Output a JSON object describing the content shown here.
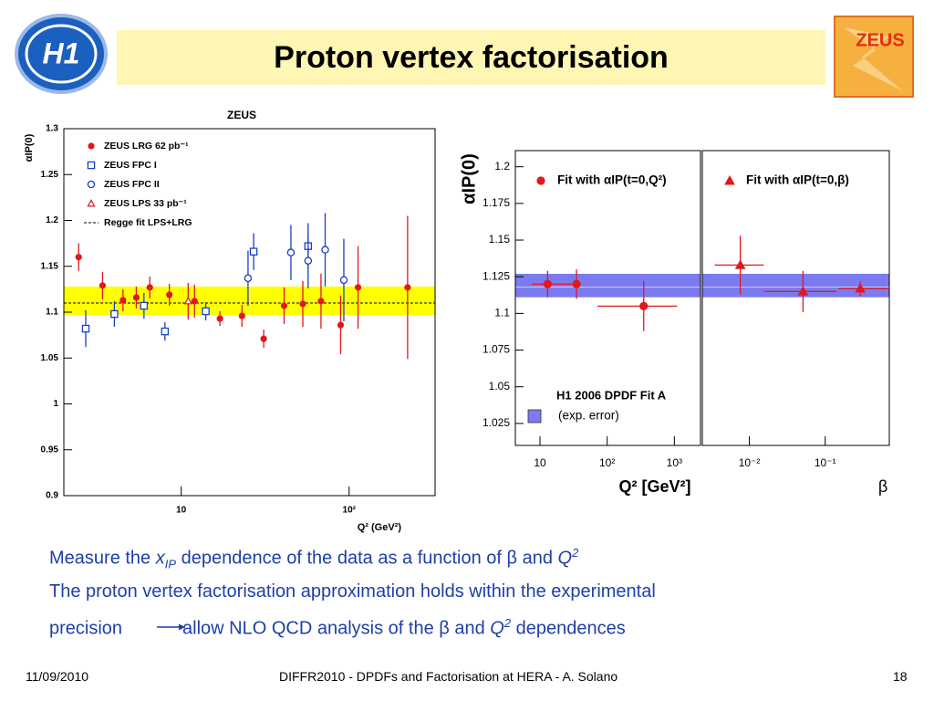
{
  "slide_title": "Proton vertex factorisation",
  "logos": {
    "left": "H1",
    "right": "ZEUS"
  },
  "chart_data": [
    {
      "type": "scatter",
      "title": "ZEUS",
      "y_label": "αIP(0)",
      "x_label": "Q² (GeV²)",
      "xscale": "log",
      "xlim": [
        2,
        325
      ],
      "xticks": [
        10,
        {
          "value": 100,
          "label": "10²"
        }
      ],
      "ylim": [
        0.9,
        1.3
      ],
      "yticks": [
        0.9,
        0.95,
        1,
        1.05,
        1.1,
        1.15,
        1.2,
        1.25,
        1.3
      ],
      "legend": "upper left",
      "fit": {
        "name": "Regge fit LPS+LRG",
        "value": 1.11,
        "band": [
          1.097,
          1.128
        ],
        "color": "#000000",
        "band_color": "#ffff00",
        "style": "dashed"
      },
      "series": [
        {
          "name": "ZEUS LRG 62 pb⁻¹",
          "color": "#e3161d",
          "marker": "circle-filled",
          "x": [
            2.45,
            3.4,
            4.5,
            5.4,
            6.5,
            8.5,
            12,
            17,
            23,
            31,
            41,
            53,
            68,
            89,
            113,
            223
          ],
          "values": [
            1.16,
            1.129,
            1.113,
            1.116,
            1.127,
            1.119,
            1.112,
            1.093,
            1.096,
            1.071,
            1.107,
            1.109,
            1.112,
            1.086,
            1.127,
            1.127
          ],
          "errors": [
            0.015,
            0.015,
            0.012,
            0.012,
            0.012,
            0.012,
            0.018,
            0.008,
            0.012,
            0.01,
            0.02,
            0.025,
            0.03,
            0.032,
            0.045,
            0.078
          ]
        },
        {
          "name": "ZEUS FPC I",
          "color": "#1a3fc8",
          "marker": "square-open",
          "x": [
            2.7,
            4.0,
            6.0,
            8.0,
            14,
            27,
            57
          ],
          "values": [
            1.082,
            1.098,
            1.107,
            1.079,
            1.101,
            1.166,
            1.172
          ],
          "errors": [
            0.02,
            0.014,
            0.014,
            0.01,
            0.01,
            0.02,
            0.025
          ]
        },
        {
          "name": "ZEUS FPC II",
          "color": "#1a3fc8",
          "marker": "circle-open",
          "x": [
            25,
            45,
            57,
            72,
            93
          ],
          "values": [
            1.137,
            1.165,
            1.156,
            1.168,
            1.135
          ],
          "errors": [
            0.03,
            0.03,
            0.03,
            0.04,
            0.045
          ]
        },
        {
          "name": "ZEUS LPS 33 pb⁻¹",
          "color": "#e3161d",
          "marker": "triangle-open",
          "x": [
            11
          ],
          "values": [
            1.112
          ],
          "errors": [
            0.02
          ]
        }
      ]
    },
    {
      "type": "scatter",
      "y_label": "αIP(0)",
      "x_label": "Q² [GeV²]",
      "xscale": "log",
      "xlim": [
        4.3,
        2450
      ],
      "xticks": [
        10,
        {
          "value": 100,
          "label": "10²"
        },
        {
          "value": 1000,
          "label": "10³"
        }
      ],
      "ylim": [
        1.01,
        1.211
      ],
      "yticks": [
        1.025,
        1.05,
        1.075,
        1.1,
        1.125,
        1.15,
        1.175,
        1.2
      ],
      "legend": "upper left",
      "fit": {
        "name": "H1 2006 DPDF Fit A",
        "note": "(exp. error)",
        "value": 1.118,
        "band": [
          1.111,
          1.127
        ],
        "color": "#c8c8ff",
        "band_color": "#7b7bef",
        "style": "solid"
      },
      "series": [
        {
          "name": "Fit with αIP(t=0,Q²)",
          "color": "#e3161d",
          "marker": "circle-filled",
          "x": [
            13,
            35,
            350
          ],
          "x_low": [
            7.6,
            22,
            72
          ],
          "x_high": [
            22,
            41,
            1100
          ],
          "values": [
            1.12,
            1.12,
            1.105
          ],
          "errors": [
            0.009,
            0.01,
            0.017
          ]
        }
      ]
    },
    {
      "type": "scatter",
      "x_label": "β",
      "xscale": "log",
      "xlim": [
        0.0024,
        0.7
      ],
      "xticks": [
        {
          "value": 0.01,
          "label": "10⁻²"
        },
        {
          "value": 0.1,
          "label": "10⁻¹"
        }
      ],
      "ylim": [
        1.01,
        1.211
      ],
      "legend": "upper left",
      "fit": {
        "value": 1.118,
        "band": [
          1.111,
          1.127
        ],
        "color": "#c8c8ff",
        "band_color": "#7b7bef",
        "style": "solid"
      },
      "series": [
        {
          "name": "Fit with αIP(t=0,β)",
          "color": "#e3161d",
          "marker": "triangle-filled",
          "x": [
            0.0076,
            0.051,
            0.29
          ],
          "x_low": [
            0.0035,
            0.0155,
            0.15
          ],
          "x_high": [
            0.0155,
            0.14,
            0.7
          ],
          "values": [
            1.133,
            1.115,
            1.117
          ],
          "errors": [
            0.02,
            0.014,
            0.005
          ]
        }
      ]
    }
  ],
  "body": {
    "line1": [
      "Measure the ",
      "x",
      "IP",
      " dependence of the data as a function of β and ",
      "Q",
      "2"
    ],
    "line2": "The proton vertex factorisation approximation holds within the experimental",
    "line3": [
      "precision",
      "allow NLO QCD analysis of the β and ",
      "Q",
      "2",
      " dependences"
    ]
  },
  "footer": {
    "date": "11/09/2010",
    "center": "DIFFR2010  -  DPDFs and Factorisation at HERA  -  A. Solano",
    "page": "18"
  }
}
